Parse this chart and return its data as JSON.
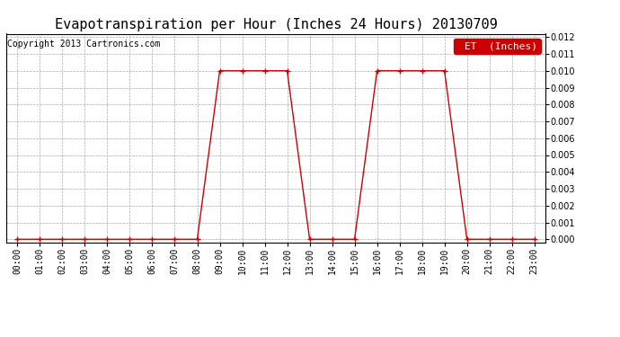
{
  "title": "Evapotranspiration per Hour (Inches 24 Hours) 20130709",
  "copyright": "Copyright 2013 Cartronics.com",
  "legend_label": "ET  (Inches)",
  "legend_bg": "#cc0000",
  "line_color": "#cc0000",
  "marker": "+",
  "marker_size": 4,
  "bg_color": "#ffffff",
  "grid_color": "#aaaaaa",
  "hours": [
    0,
    1,
    2,
    3,
    4,
    5,
    6,
    7,
    8,
    9,
    10,
    11,
    12,
    13,
    14,
    15,
    16,
    17,
    18,
    19,
    20,
    21,
    22,
    23
  ],
  "values": [
    0.0,
    0.0,
    0.0,
    0.0,
    0.0,
    0.0,
    0.0,
    0.0,
    0.0,
    0.01,
    0.01,
    0.01,
    0.01,
    0.0,
    0.0,
    0.0,
    0.01,
    0.01,
    0.01,
    0.01,
    0.0,
    0.0,
    0.0,
    0.0
  ],
  "ylim": [
    -0.0002,
    0.0122
  ],
  "yticks": [
    0.0,
    0.001,
    0.002,
    0.003,
    0.004,
    0.005,
    0.006,
    0.007,
    0.008,
    0.009,
    0.01,
    0.011,
    0.012
  ],
  "xlim": [
    -0.5,
    23.5
  ],
  "title_fontsize": 11,
  "tick_fontsize": 7,
  "copyright_fontsize": 7
}
